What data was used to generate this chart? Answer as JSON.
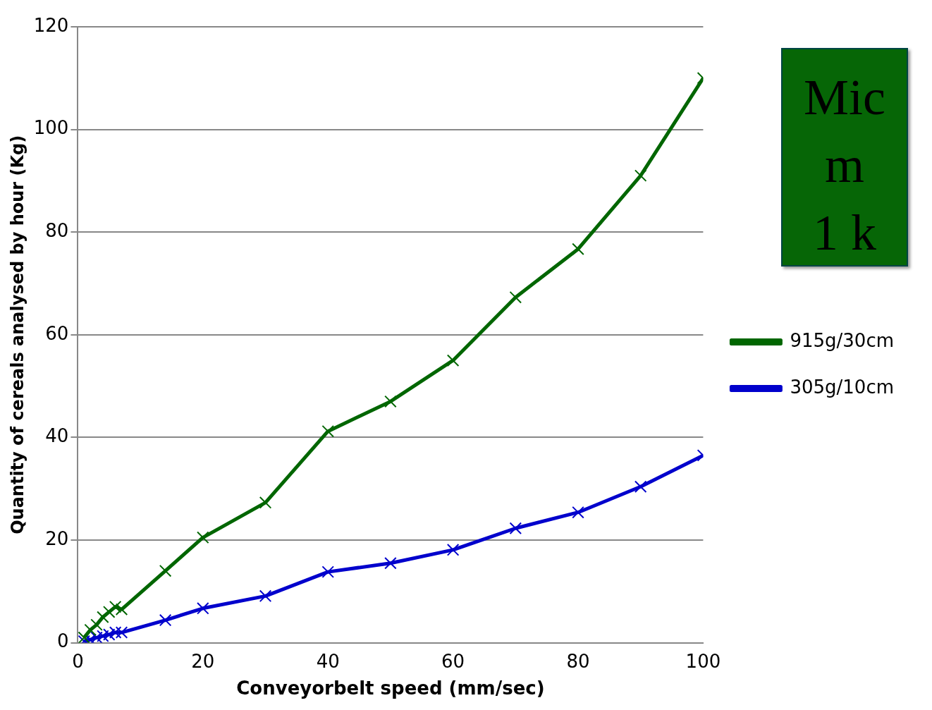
{
  "chart_data": {
    "type": "line",
    "xlabel": "Conveyorbelt speed (mm/sec)",
    "ylabel": "Quantity of cereals analysed by hour (Kg)",
    "xlim": [
      0,
      100
    ],
    "xticks": [
      0,
      20,
      40,
      60,
      80,
      100
    ],
    "ylim": [
      0,
      120
    ],
    "yticks": [
      0,
      20,
      40,
      60,
      80,
      100,
      120
    ],
    "grid": "y",
    "legend": "right",
    "line_style": "solid",
    "annotations": [
      "Mic",
      "m",
      "1 k"
    ],
    "series": [
      {
        "name": "915g/30cm",
        "color": "#006600",
        "marker": "cross",
        "x": [
          1,
          2,
          3,
          4,
          5,
          6,
          7,
          14,
          20,
          30,
          40,
          50,
          60,
          70,
          80,
          90,
          100
        ],
        "values": [
          1,
          2.5,
          3.5,
          5,
          6,
          7,
          6.5,
          14,
          20.5,
          27.3,
          41.2,
          47,
          55,
          67.3,
          76.7,
          91,
          110
        ]
      },
      {
        "name": "305g/10cm",
        "color": "#0000cc",
        "marker": "cross",
        "x": [
          1,
          2,
          3,
          4,
          5,
          6,
          7,
          14,
          20,
          30,
          40,
          50,
          60,
          70,
          80,
          90,
          100
        ],
        "values": [
          0.3,
          0.6,
          1,
          1.3,
          1.6,
          2,
          2,
          4.4,
          6.7,
          9.1,
          13.8,
          15.5,
          18.1,
          22.3,
          25.4,
          30.4,
          36.5
        ]
      }
    ]
  }
}
